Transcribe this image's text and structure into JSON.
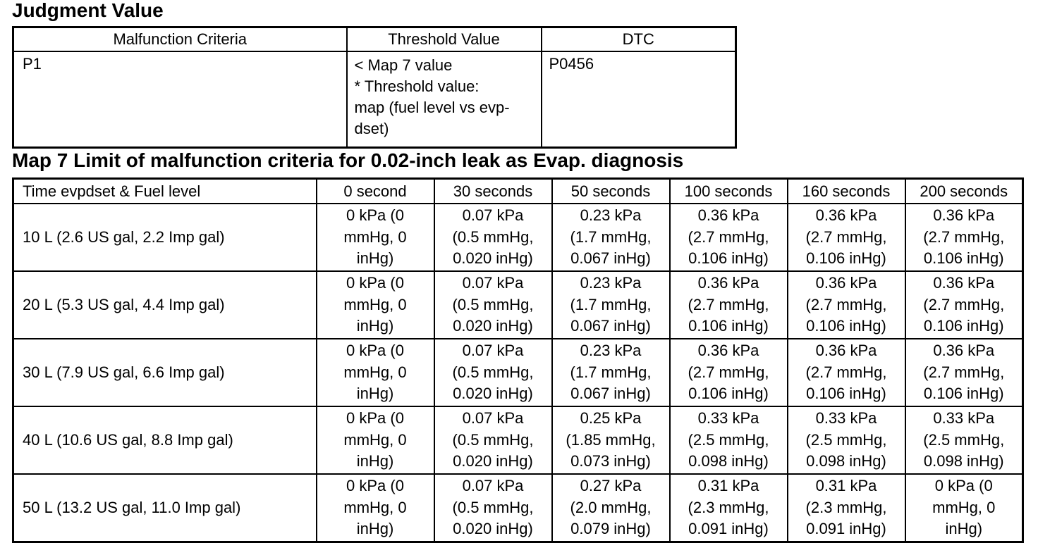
{
  "judgment": {
    "title": "Judgment Value",
    "headers": [
      "Malfunction Criteria",
      "Threshold Value",
      "DTC"
    ],
    "row": {
      "criteria": "P1",
      "threshold_lines": [
        "< Map 7 value",
        "* Threshold value:",
        "map (fuel level vs evp-",
        "dset)"
      ],
      "dtc": "P0456"
    }
  },
  "map": {
    "title": "Map 7 Limit of malfunction criteria for 0.02-inch leak as Evap. diagnosis",
    "headers": [
      "Time evpdset & Fuel level",
      "0 second",
      "30 seconds",
      "50 seconds",
      "100 seconds",
      "160 seconds",
      "200 seconds"
    ],
    "rows": [
      {
        "label": "10 L (2.6 US gal, 2.2 Imp gal)",
        "cells": [
          [
            "0 kPa (0",
            "mmHg, 0",
            "inHg)"
          ],
          [
            "0.07 kPa",
            "(0.5 mmHg,",
            "0.020 inHg)"
          ],
          [
            "0.23 kPa",
            "(1.7 mmHg,",
            "0.067 inHg)"
          ],
          [
            "0.36 kPa",
            "(2.7 mmHg,",
            "0.106 inHg)"
          ],
          [
            "0.36 kPa",
            "(2.7 mmHg,",
            "0.106 inHg)"
          ],
          [
            "0.36 kPa",
            "(2.7 mmHg,",
            "0.106 inHg)"
          ]
        ]
      },
      {
        "label": "20 L (5.3 US gal, 4.4 Imp gal)",
        "cells": [
          [
            "0 kPa (0",
            "mmHg, 0",
            "inHg)"
          ],
          [
            "0.07 kPa",
            "(0.5 mmHg,",
            "0.020 inHg)"
          ],
          [
            "0.23 kPa",
            "(1.7 mmHg,",
            "0.067 inHg)"
          ],
          [
            "0.36 kPa",
            "(2.7 mmHg,",
            "0.106 inHg)"
          ],
          [
            "0.36 kPa",
            "(2.7 mmHg,",
            "0.106 inHg)"
          ],
          [
            "0.36 kPa",
            "(2.7 mmHg,",
            "0.106 inHg)"
          ]
        ]
      },
      {
        "label": "30 L (7.9 US gal, 6.6 Imp gal)",
        "cells": [
          [
            "0 kPa (0",
            "mmHg, 0",
            "inHg)"
          ],
          [
            "0.07 kPa",
            "(0.5 mmHg,",
            "0.020 inHg)"
          ],
          [
            "0.23 kPa",
            "(1.7 mmHg,",
            "0.067 inHg)"
          ],
          [
            "0.36 kPa",
            "(2.7 mmHg,",
            "0.106 inHg)"
          ],
          [
            "0.36 kPa",
            "(2.7 mmHg,",
            "0.106 inHg)"
          ],
          [
            "0.36 kPa",
            "(2.7 mmHg,",
            "0.106 inHg)"
          ]
        ]
      },
      {
        "label": "40 L (10.6 US gal, 8.8 Imp gal)",
        "cells": [
          [
            "0 kPa (0",
            "mmHg, 0",
            "inHg)"
          ],
          [
            "0.07 kPa",
            "(0.5 mmHg,",
            "0.020 inHg)"
          ],
          [
            "0.25 kPa",
            "(1.85 mmHg,",
            "0.073 inHg)"
          ],
          [
            "0.33 kPa",
            "(2.5 mmHg,",
            "0.098 inHg)"
          ],
          [
            "0.33 kPa",
            "(2.5 mmHg,",
            "0.098 inHg)"
          ],
          [
            "0.33 kPa",
            "(2.5 mmHg,",
            "0.098 inHg)"
          ]
        ]
      },
      {
        "label": "50 L (13.2 US gal, 11.0 Imp gal)",
        "cells": [
          [
            "0 kPa (0",
            "mmHg, 0",
            "inHg)"
          ],
          [
            "0.07 kPa",
            "(0.5 mmHg,",
            "0.020 inHg)"
          ],
          [
            "0.27 kPa",
            "(2.0 mmHg,",
            "0.079 inHg)"
          ],
          [
            "0.31 kPa",
            "(2.3 mmHg,",
            "0.091 inHg)"
          ],
          [
            "0.31 kPa",
            "(2.3 mmHg,",
            "0.091 inHg)"
          ],
          [
            "0 kPa (0",
            "mmHg, 0",
            "inHg)"
          ]
        ]
      }
    ]
  }
}
